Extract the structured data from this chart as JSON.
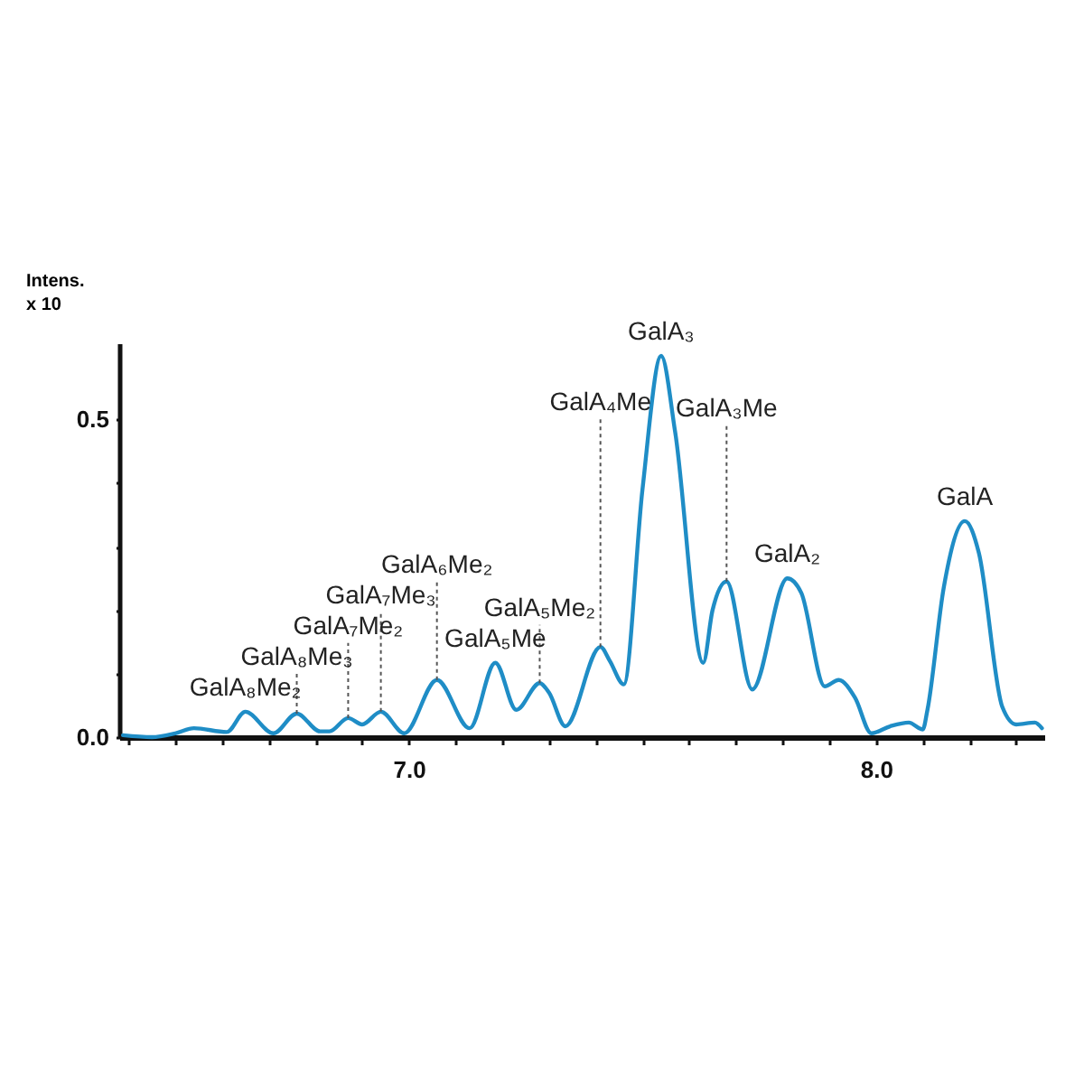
{
  "chart_data": {
    "type": "line",
    "ylabel": "Intens.\nx 10",
    "xlim": [
      6.38,
      8.36
    ],
    "ylim": [
      0,
      0.62
    ],
    "xticks": [
      {
        "value": 6.4,
        "label": null
      },
      {
        "value": 6.5,
        "label": null
      },
      {
        "value": 6.6,
        "label": null
      },
      {
        "value": 6.7,
        "label": null
      },
      {
        "value": 6.8,
        "label": null
      },
      {
        "value": 6.9,
        "label": null
      },
      {
        "value": 7,
        "label": "7.0"
      },
      {
        "value": 7.1,
        "label": null
      },
      {
        "value": 7.2,
        "label": null
      },
      {
        "value": 7.3,
        "label": null
      },
      {
        "value": 7.4,
        "label": null
      },
      {
        "value": 7.5,
        "label": null
      },
      {
        "value": 7.6,
        "label": null
      },
      {
        "value": 7.7,
        "label": null
      },
      {
        "value": 7.8,
        "label": null
      },
      {
        "value": 7.9,
        "label": null
      },
      {
        "value": 8,
        "label": "8.0"
      },
      {
        "value": 8.1,
        "label": null
      },
      {
        "value": 8.2,
        "label": null
      },
      {
        "value": 8.3,
        "label": null
      }
    ],
    "yticks": [
      {
        "value": 0,
        "label": "0.0"
      },
      {
        "value": 0.1,
        "label": null
      },
      {
        "value": 0.2,
        "label": null
      },
      {
        "value": 0.3,
        "label": null
      },
      {
        "value": 0.4,
        "label": null
      },
      {
        "value": 0.5,
        "label": "0.5"
      }
    ],
    "grid": false,
    "marker": "none",
    "line_style": "solid",
    "x": [
      6.388,
      6.45,
      6.5,
      6.54,
      6.61,
      6.65,
      6.71,
      6.76,
      6.81,
      6.83,
      6.87,
      6.9,
      6.94,
      6.99,
      7.06,
      7.13,
      7.185,
      7.23,
      7.28,
      7.3,
      7.335,
      7.41,
      7.43,
      7.46,
      7.5,
      7.54,
      7.57,
      7.63,
      7.65,
      7.68,
      7.735,
      7.81,
      7.84,
      7.89,
      7.92,
      7.955,
      7.99,
      8.03,
      8.07,
      8.1,
      8.11,
      8.145,
      8.19,
      8.22,
      8.27,
      8.3,
      8.34,
      8.355
    ],
    "series": [
      {
        "color": "#1f8dc6",
        "values": [
          0.003,
          0.0,
          0.006,
          0.014,
          0.008,
          0.04,
          0.006,
          0.037,
          0.009,
          0.009,
          0.03,
          0.02,
          0.04,
          0.006,
          0.09,
          0.014,
          0.117,
          0.043,
          0.085,
          0.07,
          0.017,
          0.142,
          0.12,
          0.083,
          0.39,
          0.6,
          0.48,
          0.117,
          0.2,
          0.245,
          0.075,
          0.25,
          0.227,
          0.08,
          0.09,
          0.062,
          0.006,
          0.017,
          0.023,
          0.012,
          0.043,
          0.236,
          0.34,
          0.29,
          0.048,
          0.02,
          0.023,
          0.014
        ]
      }
    ],
    "annotations": [
      {
        "text": "GalA₈Me₂",
        "x": 6.65,
        "y": 0.04
      },
      {
        "text": "GalA₈Me₃",
        "x": 6.76,
        "y": 0.037
      },
      {
        "text": "GalA₇Me₂",
        "x": 6.87,
        "y": 0.03
      },
      {
        "text": "GalA₇Me₃",
        "x": 6.94,
        "y": 0.04
      },
      {
        "text": "GalA₆Me₂",
        "x": 7.06,
        "y": 0.09
      },
      {
        "text": "GalA₅Me",
        "x": 7.185,
        "y": 0.117
      },
      {
        "text": "GalA₅Me₂",
        "x": 7.28,
        "y": 0.085
      },
      {
        "text": "GalA₄Me",
        "x": 7.41,
        "y": 0.142
      },
      {
        "text": "GalA₃",
        "x": 7.54,
        "y": 0.6
      },
      {
        "text": "GalA₃Me",
        "x": 7.68,
        "y": 0.245
      },
      {
        "text": "GalA₂",
        "x": 7.81,
        "y": 0.25
      },
      {
        "text": "GalA",
        "x": 8.19,
        "y": 0.34
      }
    ]
  }
}
